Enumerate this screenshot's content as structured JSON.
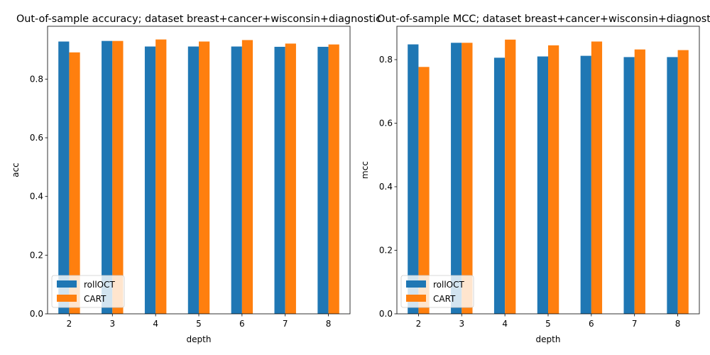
{
  "chart_data": [
    {
      "type": "bar",
      "title": "Out-of-sample accuracy; dataset breast+cancer+wisconsin+diagnostic",
      "xlabel": "depth",
      "ylabel": "acc",
      "categories": [
        "2",
        "3",
        "4",
        "5",
        "6",
        "7",
        "8"
      ],
      "ylim": [
        0,
        0.98
      ],
      "yticks": [
        "0.0",
        "0.2",
        "0.4",
        "0.6",
        "0.8"
      ],
      "grid": false,
      "legend_position": "lower-left",
      "series": [
        {
          "name": "rollOCT",
          "color": "#1f77b4",
          "values": [
            0.928,
            0.93,
            0.911,
            0.911,
            0.911,
            0.91,
            0.91
          ]
        },
        {
          "name": "CART",
          "color": "#ff7f0e",
          "values": [
            0.891,
            0.93,
            0.935,
            0.928,
            0.933,
            0.921,
            0.918
          ]
        }
      ]
    },
    {
      "type": "bar",
      "title": "Out-of-sample MCC; dataset breast+cancer+wisconsin+diagnostic",
      "xlabel": "depth",
      "ylabel": "mcc",
      "categories": [
        "2",
        "3",
        "4",
        "5",
        "6",
        "7",
        "8"
      ],
      "ylim": [
        0,
        0.905
      ],
      "yticks": [
        "0.0",
        "0.2",
        "0.4",
        "0.6",
        "0.8"
      ],
      "grid": false,
      "legend_position": "lower-left",
      "series": [
        {
          "name": "rollOCT",
          "color": "#1f77b4",
          "values": [
            0.848,
            0.853,
            0.806,
            0.81,
            0.812,
            0.808,
            0.808
          ]
        },
        {
          "name": "CART",
          "color": "#ff7f0e",
          "values": [
            0.777,
            0.853,
            0.863,
            0.845,
            0.857,
            0.832,
            0.83
          ]
        }
      ]
    }
  ]
}
